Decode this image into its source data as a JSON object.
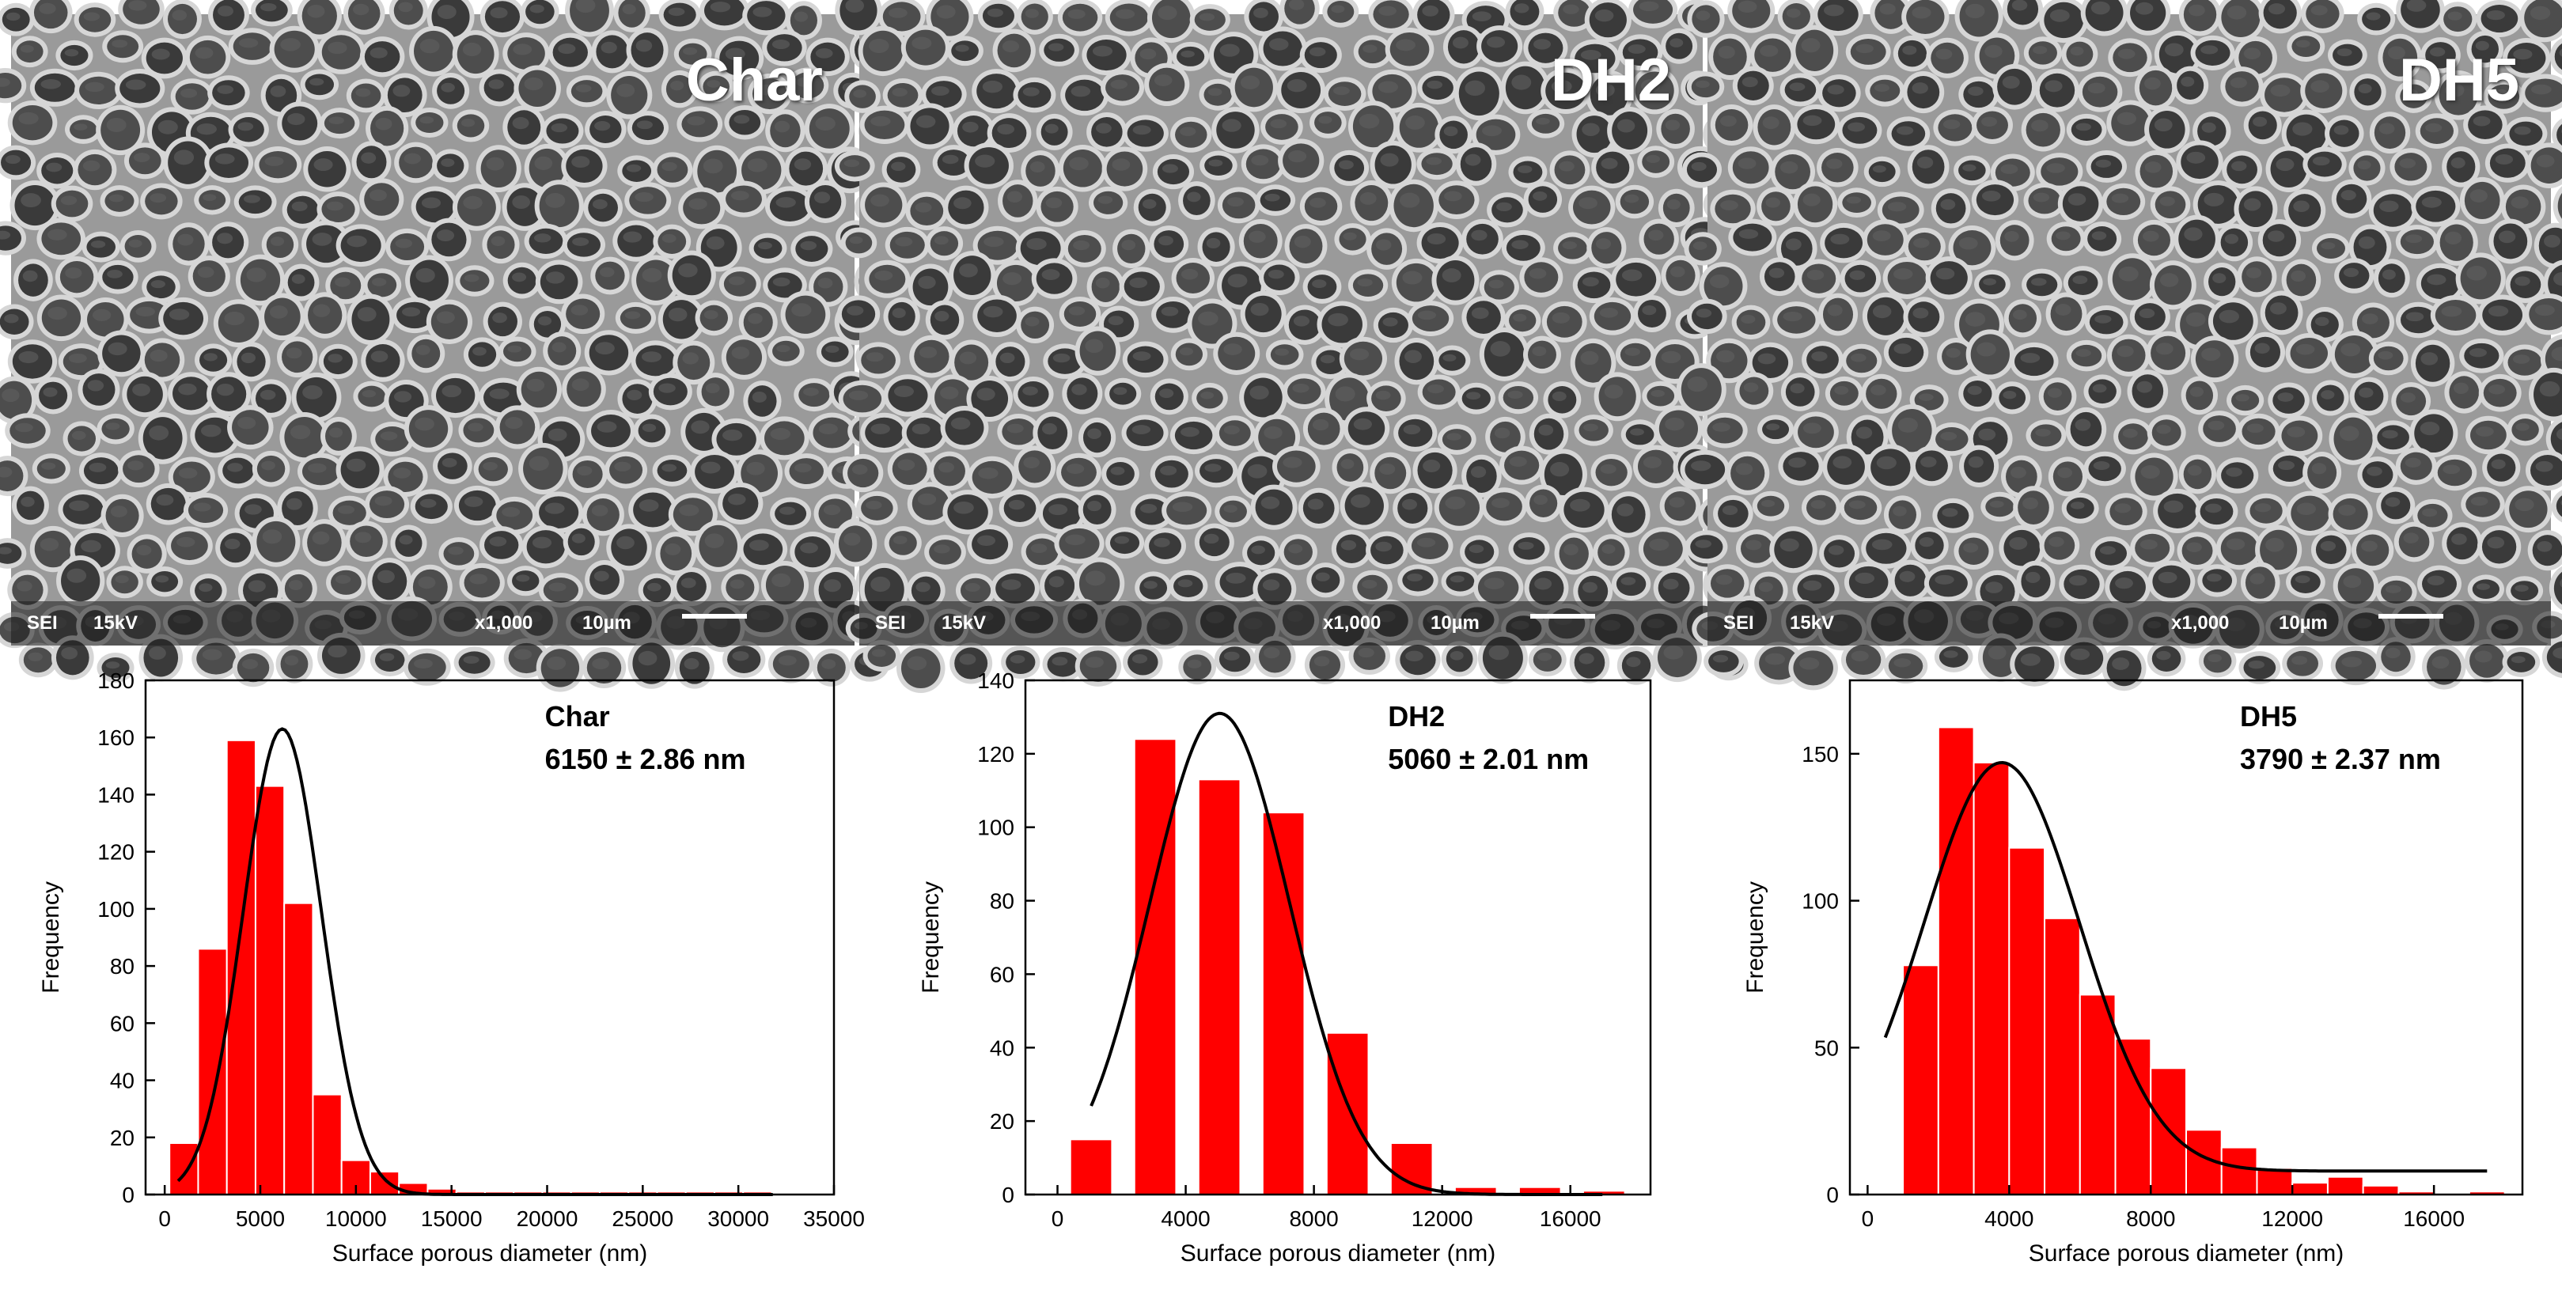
{
  "sem_panels": [
    {
      "label": "Char",
      "info": {
        "mode": "SEI",
        "kv": "15kV",
        "mag": "x1,000",
        "scale": "10µm"
      }
    },
    {
      "label": "DH2",
      "info": {
        "mode": "SEI",
        "kv": "15kV",
        "mag": "x1,000",
        "scale": "10µm"
      }
    },
    {
      "label": "DH5",
      "info": {
        "mode": "SEI",
        "kv": "15kV",
        "mag": "x1,000",
        "scale": "10µm"
      }
    }
  ],
  "colors": {
    "bar": "#ff0000",
    "fit": "#000000",
    "bar_edge": "#ffffff"
  },
  "chart_data": [
    {
      "type": "bar",
      "title": "Char",
      "subtitle": "6150 ± 2.86 nm",
      "xlabel": "Surface porous diameter (nm)",
      "ylabel": "Frequency",
      "xlim": [
        -1000,
        35000
      ],
      "ylim": [
        0,
        180
      ],
      "xticks": [
        0,
        5000,
        10000,
        15000,
        20000,
        25000,
        30000,
        35000
      ],
      "yticks": [
        0,
        20,
        40,
        60,
        80,
        100,
        120,
        140,
        160,
        180
      ],
      "bin_width": 1500,
      "bins": [
        [
          1000,
          18
        ],
        [
          2500,
          86
        ],
        [
          4000,
          159
        ],
        [
          5500,
          143
        ],
        [
          7000,
          102
        ],
        [
          8500,
          35
        ],
        [
          10000,
          12
        ],
        [
          11500,
          8
        ],
        [
          13000,
          4
        ],
        [
          14500,
          2
        ],
        [
          16000,
          1
        ],
        [
          17500,
          1
        ],
        [
          19000,
          1
        ],
        [
          20500,
          1
        ],
        [
          22000,
          1
        ],
        [
          23500,
          1
        ],
        [
          25000,
          1
        ],
        [
          26500,
          1
        ],
        [
          28000,
          1
        ],
        [
          29500,
          1
        ],
        [
          31000,
          1
        ]
      ],
      "fit": {
        "mean": 6150,
        "sd": 2050,
        "peak": 163,
        "x_start": 700,
        "x_end": 31800
      }
    },
    {
      "type": "bar",
      "title": "DH2",
      "subtitle": "5060 ± 2.01 nm",
      "xlabel": "Surface porous diameter (nm)",
      "ylabel": "Frequency",
      "xlim": [
        -1000,
        18500
      ],
      "ylim": [
        0,
        140
      ],
      "xticks": [
        0,
        4000,
        8000,
        12000,
        16000
      ],
      "yticks": [
        0,
        20,
        40,
        60,
        80,
        100,
        120,
        140
      ],
      "bin_width": 1300,
      "bins": [
        [
          1050,
          15
        ],
        [
          3050,
          124
        ],
        [
          5050,
          113
        ],
        [
          7050,
          104
        ],
        [
          9050,
          44
        ],
        [
          11050,
          14
        ],
        [
          13050,
          2
        ],
        [
          15050,
          2
        ],
        [
          17050,
          1
        ]
      ],
      "fit": {
        "mean": 5060,
        "sd": 2180,
        "peak": 131,
        "x_start": 1050,
        "x_end": 17000
      }
    },
    {
      "type": "bar",
      "title": "DH5",
      "subtitle": "3790 ± 2.37 nm",
      "xlabel": "Surface porous diameter (nm)",
      "ylabel": "Frequency",
      "xlim": [
        -500,
        18500
      ],
      "ylim": [
        0,
        175
      ],
      "xticks": [
        0,
        4000,
        8000,
        12000,
        16000
      ],
      "yticks": [
        0,
        50,
        100,
        150
      ],
      "bin_width": 1000,
      "bins": [
        [
          1500,
          78
        ],
        [
          2500,
          159
        ],
        [
          3500,
          147
        ],
        [
          4500,
          118
        ],
        [
          5500,
          94
        ],
        [
          6500,
          68
        ],
        [
          7500,
          53
        ],
        [
          8500,
          43
        ],
        [
          9500,
          22
        ],
        [
          10500,
          16
        ],
        [
          11500,
          9
        ],
        [
          12500,
          4
        ],
        [
          13500,
          6
        ],
        [
          14500,
          3
        ],
        [
          15500,
          1
        ],
        [
          17500,
          1
        ]
      ],
      "fit": {
        "mean": 3790,
        "sd": 2200,
        "peak": 147,
        "base": 8,
        "x_start": 500,
        "x_end": 17500
      }
    }
  ]
}
